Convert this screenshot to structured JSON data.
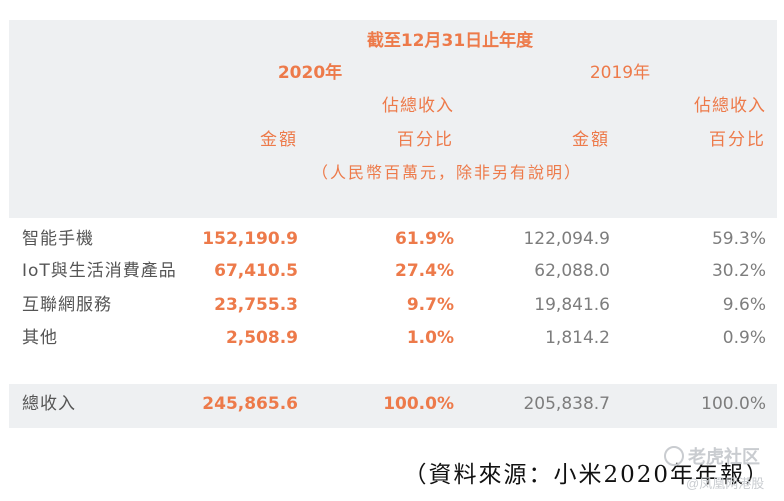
{
  "header": {
    "period": "截至12月31日止年度",
    "year_2020": "2020年",
    "year_2019": "2019年",
    "pct_line1_2020": "佔總收入",
    "pct_line1_2019": "佔總收入",
    "amount_2020": "金額",
    "pct_line2_2020": "百分比",
    "amount_2019": "金額",
    "pct_line2_2019": "百分比",
    "unit_note": "（人民幣百萬元，除非另有說明）"
  },
  "rows": [
    {
      "label": "智能手機",
      "amt2020": "152,190.9",
      "pct2020": "61.9%",
      "amt2019": "122,094.9",
      "pct2019": "59.3%"
    },
    {
      "label": "IoT與生活消費產品",
      "amt2020": "67,410.5",
      "pct2020": "27.4%",
      "amt2019": "62,088.0",
      "pct2019": "30.2%"
    },
    {
      "label": "互聯網服務",
      "amt2020": "23,755.3",
      "pct2020": "9.7%",
      "amt2019": "19,841.6",
      "pct2019": "9.6%"
    },
    {
      "label": "其他",
      "amt2020": "2,508.9",
      "pct2020": "1.0%",
      "amt2019": "1,814.2",
      "pct2019": "0.9%"
    }
  ],
  "total": {
    "label": "總收入",
    "amt2020": "245,865.6",
    "pct2020": "100.0%",
    "amt2019": "205,838.7",
    "pct2019": "100.0%"
  },
  "source": "（資料來源：小米2020年年報）",
  "watermark": {
    "line1": "老虎社区",
    "line2": "@凤凰网港股"
  },
  "colors": {
    "accent": "#ed7a4a",
    "panel": "#eef0f2",
    "text_gray": "#7d7d7d"
  }
}
